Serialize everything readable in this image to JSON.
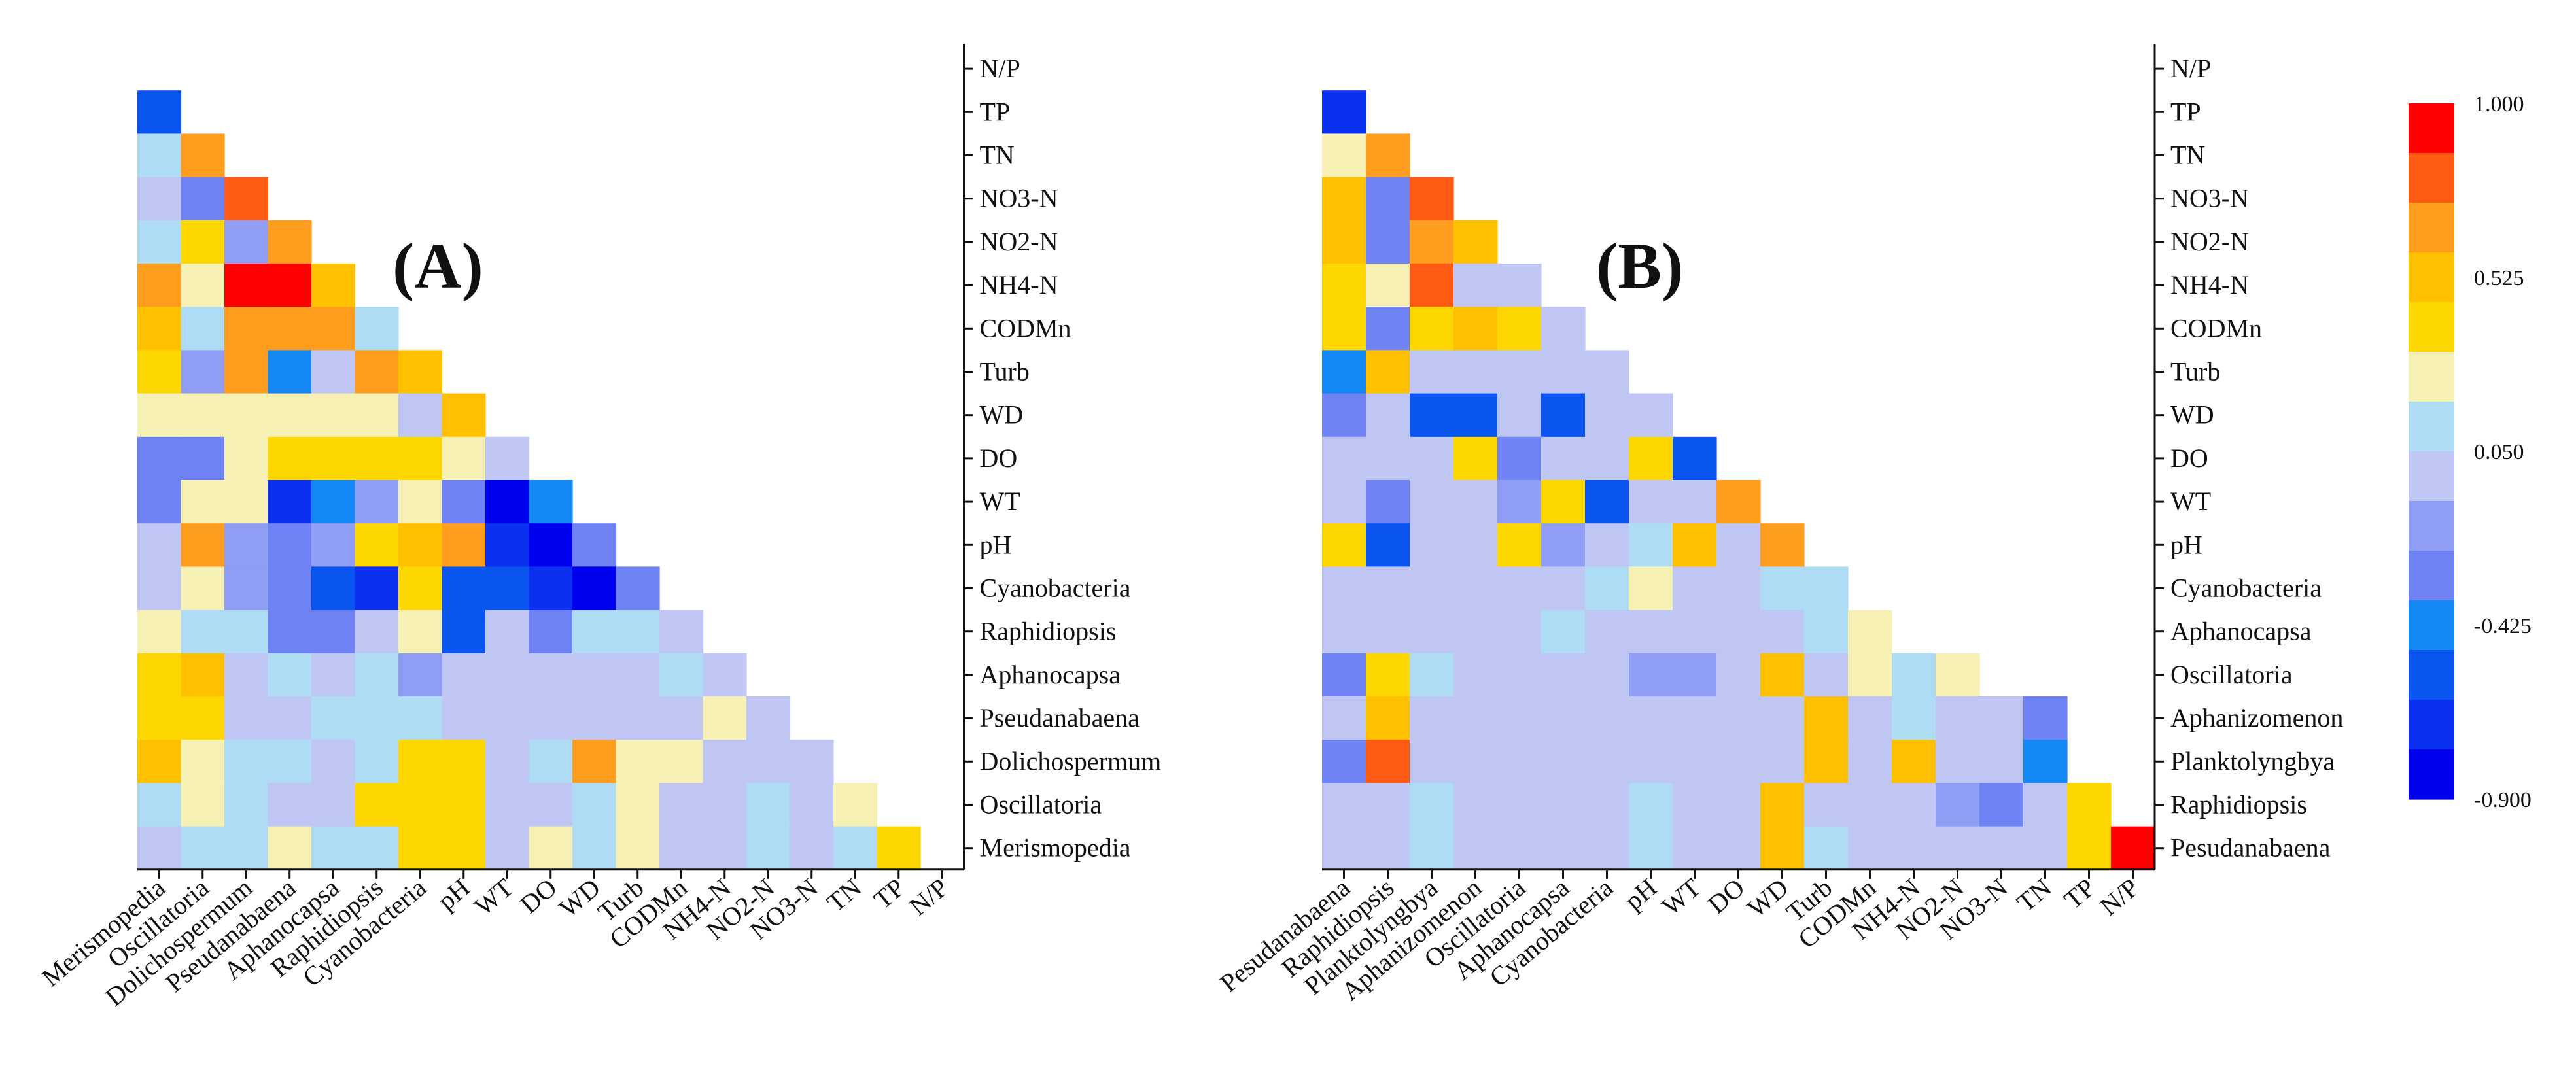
{
  "chart_data": [
    {
      "type": "heatmap",
      "panel_label": "(A)",
      "title": "",
      "triangle": "lower-left",
      "labels": [
        "Merismopedia",
        "Oscillatoria",
        "Dolichospermum",
        "Pseudanabaena",
        "Aphanocapsa",
        "Raphidiopsis",
        "Cyanobacteria",
        "pH",
        "WT",
        "DO",
        "WD",
        "Turb",
        "CODMn",
        "NH4-N",
        "NO2-N",
        "NO3-N",
        "TN",
        "TP",
        "N/P"
      ],
      "x_tick_labels": [
        "Merismopedia",
        "Oscillatoria",
        "Dolichospermum",
        "Pseudanabaena",
        "Aphanocapsa",
        "Raphidiopsis",
        "Cyanobacteria",
        "pH",
        "WT",
        "DO",
        "WD",
        "Turb",
        "CODMn",
        "NH4-N",
        "NO2-N",
        "NO3-N",
        "TN",
        "TP",
        "N/P"
      ],
      "y_tick_labels": [
        "N/P",
        "TP",
        "TN",
        "NO3-N",
        "NO2-N",
        "NH4-N",
        "CODMn",
        "Turb",
        "WD",
        "DO",
        "WT",
        "pH",
        "Cyanobacteria",
        "Raphidiopsis",
        "Aphanocapsa",
        "Pseudanabaena",
        "Dolichospermum",
        "Oscillatoria",
        "Merismopedia"
      ],
      "rows": [
        [],
        [
          -0.55
        ],
        [
          0.1,
          0.6
        ],
        [
          0.0,
          -0.3,
          0.8
        ],
        [
          0.05,
          0.4,
          -0.2,
          0.6
        ],
        [
          0.6,
          0.2,
          0.9,
          0.95,
          0.55
        ],
        [
          0.5,
          0.1,
          0.6,
          0.6,
          0.6,
          0.15
        ],
        [
          0.4,
          -0.2,
          0.65,
          -0.4,
          -0.1,
          0.7,
          0.45
        ],
        [
          0.3,
          0.2,
          0.2,
          0.2,
          0.3,
          0.3,
          -0.1,
          0.45
        ],
        [
          -0.35,
          -0.35,
          0.3,
          0.4,
          0.35,
          0.4,
          0.4,
          0.2,
          -0.1
        ],
        [
          -0.35,
          0.3,
          0.3,
          -0.75,
          -0.5,
          -0.2,
          0.3,
          -0.35,
          -0.8,
          -0.45
        ],
        [
          0.0,
          0.6,
          -0.2,
          -0.3,
          -0.2,
          0.4,
          0.5,
          0.65,
          -0.7,
          -0.85,
          -0.3
        ],
        [
          0.0,
          0.2,
          -0.2,
          -0.3,
          -0.6,
          -0.7,
          0.35,
          -0.6,
          -0.6,
          -0.7,
          -0.9,
          -0.3
        ],
        [
          0.3,
          0.15,
          0.15,
          -0.25,
          -0.25,
          -0.1,
          0.2,
          -0.55,
          -0.1,
          -0.3,
          0.15,
          0.1,
          0.0
        ],
        [
          0.35,
          0.45,
          0.0,
          0.1,
          0.0,
          0.1,
          -0.15,
          0.0,
          0.0,
          0.0,
          0.0,
          0.0,
          0.1,
          0.0
        ],
        [
          0.35,
          0.4,
          0.0,
          0.0,
          0.15,
          0.1,
          0.05,
          0.0,
          0.0,
          0.0,
          0.0,
          0.0,
          0.0,
          0.2,
          0.0
        ],
        [
          0.45,
          0.2,
          0.1,
          0.1,
          0.0,
          0.05,
          0.4,
          0.4,
          0.0,
          0.1,
          0.6,
          0.2,
          0.2,
          0.0,
          0.0,
          0.0
        ],
        [
          0.1,
          0.2,
          0.1,
          0.0,
          0.0,
          0.35,
          0.4,
          0.4,
          0.0,
          0.0,
          0.1,
          0.3,
          0.0,
          0.0,
          0.1,
          0.0,
          0.3
        ],
        [
          0.0,
          0.1,
          0.1,
          0.2,
          0.1,
          0.1,
          0.35,
          0.4,
          0.0,
          0.2,
          0.1,
          0.3,
          0.0,
          0.0,
          0.1,
          0.0,
          0.1,
          0.4
        ]
      ]
    },
    {
      "type": "heatmap",
      "panel_label": "(B)",
      "title": "",
      "triangle": "lower-left",
      "labels": [
        "Pesudanabaena",
        "Raphidiopsis",
        "Planktolyngbya",
        "Aphanizomenon",
        "Oscillatoria",
        "Aphanocapsa",
        "Cyanobacteria",
        "pH",
        "WT",
        "DO",
        "WD",
        "Turb",
        "CODMn",
        "NH4-N",
        "NO2-N",
        "NO3-N",
        "TN",
        "TP",
        "N/P"
      ],
      "x_tick_labels": [
        "Pesudanabaena",
        "Raphidiopsis",
        "Planktolyngbya",
        "Aphanizomenon",
        "Oscillatoria",
        "Aphanocapsa",
        "Cyanobacteria",
        "pH",
        "WT",
        "DO",
        "WD",
        "Turb",
        "CODMn",
        "NH4-N",
        "NO2-N",
        "NO3-N",
        "TN",
        "TP",
        "N/P"
      ],
      "y_tick_labels": [
        "N/P",
        "TP",
        "TN",
        "NO3-N",
        "NO2-N",
        "NH4-N",
        "CODMn",
        "Turb",
        "WD",
        "DO",
        "WT",
        "pH",
        "Cyanobacteria",
        "Aphanocapsa",
        "Oscillatoria",
        "Aphanizomenon",
        "Planktolyngbya",
        "Raphidiopsis",
        "Pesudanabaena"
      ],
      "rows": [
        [],
        [
          -0.7
        ],
        [
          0.2,
          0.6
        ],
        [
          0.45,
          -0.3,
          0.75
        ],
        [
          0.45,
          -0.3,
          0.6,
          0.55
        ],
        [
          0.4,
          0.2,
          0.75,
          -0.1,
          -0.1
        ],
        [
          0.4,
          -0.3,
          0.4,
          0.5,
          0.4,
          -0.1
        ],
        [
          -0.5,
          0.55,
          -0.1,
          -0.1,
          -0.1,
          -0.1,
          -0.1
        ],
        [
          -0.3,
          -0.1,
          -0.6,
          -0.6,
          0.0,
          -0.6,
          -0.1,
          -0.1
        ],
        [
          0.0,
          0.0,
          0.0,
          0.4,
          -0.3,
          0.0,
          0.0,
          0.4,
          -0.6
        ],
        [
          0.0,
          -0.3,
          0.0,
          0.0,
          -0.2,
          0.4,
          -0.6,
          0.0,
          0.0,
          0.7
        ],
        [
          0.4,
          -0.6,
          0.0,
          0.0,
          0.4,
          -0.2,
          0.0,
          0.1,
          0.45,
          0.0,
          0.7
        ],
        [
          -0.1,
          0.0,
          0.0,
          -0.1,
          0.0,
          0.0,
          0.1,
          0.2,
          -0.1,
          0.0,
          0.1,
          0.1
        ],
        [
          -0.1,
          0.0,
          0.0,
          0.0,
          0.0,
          0.15,
          0.0,
          0.0,
          -0.1,
          0.0,
          0.0,
          0.15,
          0.2
        ],
        [
          -0.3,
          0.4,
          0.1,
          0.0,
          0.0,
          0.0,
          -0.1,
          -0.2,
          -0.2,
          0.0,
          0.45,
          0.0,
          0.2,
          0.1,
          0.2
        ],
        [
          -0.1,
          0.5,
          0.0,
          0.0,
          0.0,
          0.0,
          -0.1,
          -0.1,
          -0.1,
          0.0,
          0.0,
          0.45,
          0.0,
          0.1,
          0.0,
          0.0,
          -0.3
        ],
        [
          -0.3,
          0.75,
          0.0,
          0.0,
          0.0,
          0.0,
          -0.1,
          -0.1,
          -0.1,
          0.0,
          0.0,
          0.45,
          0.0,
          0.45,
          0.0,
          0.0,
          -0.5
        ],
        [
          0.0,
          0.0,
          0.1,
          0.0,
          0.0,
          0.0,
          0.0,
          0.1,
          0.0,
          0.0,
          0.5,
          0.0,
          0.0,
          0.0,
          -0.2,
          -0.3,
          -0.1,
          0.4
        ],
        [
          0.0,
          0.0,
          0.1,
          0.0,
          0.0,
          0.0,
          0.0,
          0.1,
          0.0,
          0.0,
          0.45,
          0.1,
          0.0,
          0.0,
          0.0,
          0.0,
          0.0,
          0.4,
          0.95
        ]
      ]
    }
  ],
  "colorbar": {
    "tick_labels": [
      "1.000",
      "0.525",
      "0.050",
      "-0.425",
      "-0.900"
    ],
    "min": -0.9,
    "max": 1.0,
    "bins": [
      {
        "lo": 0.8625,
        "hi": 1.0,
        "color": "#ff0000"
      },
      {
        "lo": 0.725,
        "hi": 0.8625,
        "color": "#ff5a14"
      },
      {
        "lo": 0.5875,
        "hi": 0.725,
        "color": "#ff9d1e"
      },
      {
        "lo": 0.45,
        "hi": 0.5875,
        "color": "#ffc000"
      },
      {
        "lo": 0.3125,
        "hi": 0.45,
        "color": "#ffd700"
      },
      {
        "lo": 0.175,
        "hi": 0.3125,
        "color": "#f6f0b4"
      },
      {
        "lo": 0.0375,
        "hi": 0.175,
        "color": "#aedcf4"
      },
      {
        "lo": -0.1,
        "hi": 0.0375,
        "color": "#bfc6f4"
      },
      {
        "lo": -0.2375,
        "hi": -0.1,
        "color": "#8f9df4"
      },
      {
        "lo": -0.375,
        "hi": -0.2375,
        "color": "#6f82f4"
      },
      {
        "lo": -0.5125,
        "hi": -0.375,
        "color": "#1488f5"
      },
      {
        "lo": -0.65,
        "hi": -0.5125,
        "color": "#0a55f0"
      },
      {
        "lo": -0.7875,
        "hi": -0.65,
        "color": "#0a30f0"
      },
      {
        "lo": -0.9,
        "hi": -0.7875,
        "color": "#0000f0"
      }
    ]
  }
}
